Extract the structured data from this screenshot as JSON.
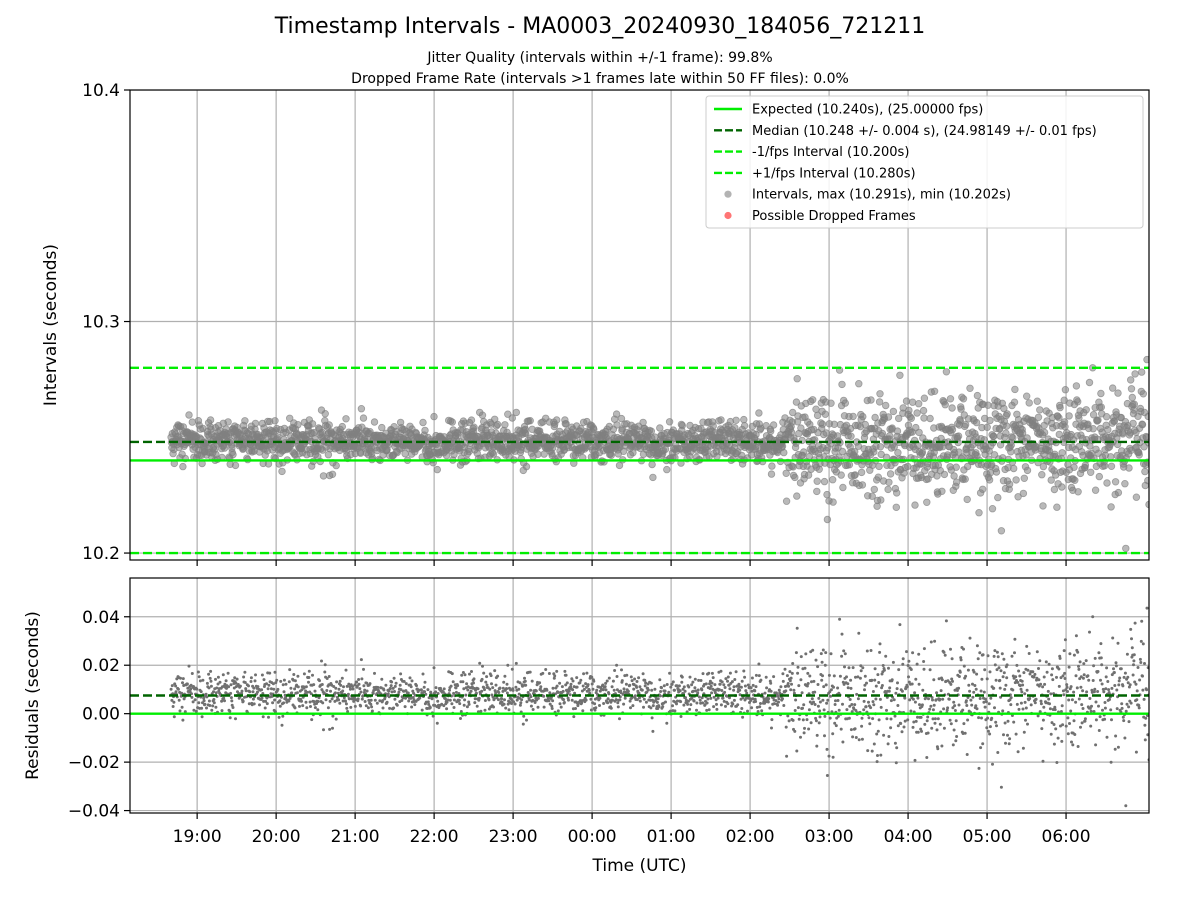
{
  "chart_data": [
    {
      "type": "scatter",
      "title": "Timestamp Intervals - MA0003_20240930_184056_721211",
      "subtitles": [
        "Jitter Quality (intervals within +/-1 frame): 99.8%",
        "Dropped Frame Rate (intervals >1 frames late within 50 FF files): 0.0%"
      ],
      "ylabel": "Intervals (seconds)",
      "xlabel": "",
      "ylim": [
        10.197,
        10.4
      ],
      "yticks": [
        10.2,
        10.3,
        10.4
      ],
      "ytick_labels": [
        "10.2",
        "10.3",
        "10.4"
      ],
      "xlim_hours": [
        -0.85,
        12.05
      ],
      "x_unit": "hours after 19:00 UTC",
      "xticks": [
        0,
        1,
        2,
        3,
        4,
        5,
        6,
        7,
        8,
        9,
        10,
        11
      ],
      "grid": true,
      "legend_position": "top-right",
      "lines": [
        {
          "name": "Expected (10.240s), (25.00000 fps)",
          "y": 10.24,
          "style": "solid",
          "color": "#00ee00"
        },
        {
          "name": "Median (10.248 +/- 0.004 s), (24.98149 +/- 0.01 fps)",
          "y": 10.248,
          "style": "dashed",
          "color": "#006400"
        },
        {
          "name": "-1/fps Interval (10.200s)",
          "y": 10.2,
          "style": "dashed",
          "color": "#00ee00"
        },
        {
          "name": "+1/fps Interval (10.280s)",
          "y": 10.28,
          "style": "dashed",
          "color": "#00ee00"
        }
      ],
      "legend": [
        {
          "label": "Expected (10.240s), (25.00000 fps)",
          "kind": "line",
          "style": "solid",
          "color": "#00ee00"
        },
        {
          "label": "Median (10.248 +/- 0.004 s), (24.98149 +/- 0.01 fps)",
          "kind": "line",
          "style": "dashed",
          "color": "#006400"
        },
        {
          "label": "-1/fps Interval (10.200s)",
          "kind": "line",
          "style": "dashed",
          "color": "#00ee00"
        },
        {
          "label": "+1/fps Interval (10.280s)",
          "kind": "line",
          "style": "dashed",
          "color": "#00ee00"
        },
        {
          "label": "Intervals, max (10.291s), min (10.202s)",
          "kind": "marker",
          "color": "#808080"
        },
        {
          "label": "Possible Dropped Frames",
          "kind": "marker",
          "color": "#ff6666"
        }
      ],
      "series": [
        {
          "name": "Intervals",
          "color": "#808080",
          "x_start_hours": -0.33,
          "x_end_hours": 12.05,
          "center": 10.248,
          "typical_spread_s_calm": 0.0042,
          "typical_spread_s_noisy": 0.011,
          "noisy_from_hours": 7.45,
          "max": 10.291,
          "min": 10.202
        },
        {
          "name": "Possible Dropped Frames",
          "color": "#ff6666",
          "count": 0
        }
      ]
    },
    {
      "type": "scatter",
      "ylabel": "Residuals (seconds)",
      "xlabel": "Time (UTC)",
      "ylim": [
        -0.041,
        0.056
      ],
      "yticks": [
        -0.04,
        -0.02,
        0.0,
        0.02,
        0.04
      ],
      "ytick_labels": [
        "−0.04",
        "−0.02",
        "0.00",
        "0.02",
        "0.04"
      ],
      "xlim_hours": [
        -0.85,
        12.05
      ],
      "x_unit": "hours after 19:00 UTC",
      "xticks": [
        0,
        1,
        2,
        3,
        4,
        5,
        6,
        7,
        8,
        9,
        10,
        11
      ],
      "xtick_labels": [
        "19:00",
        "20:00",
        "21:00",
        "22:00",
        "23:00",
        "00:00",
        "01:00",
        "02:00",
        "03:00",
        "04:00",
        "05:00",
        "06:00"
      ],
      "grid": true,
      "lines": [
        {
          "y": 0.0,
          "style": "solid",
          "color": "#00ee00"
        },
        {
          "y": 0.0075,
          "style": "dashed",
          "color": "#006400"
        }
      ],
      "series": [
        {
          "name": "Residuals",
          "color": "#707070",
          "x_start_hours": -0.33,
          "x_end_hours": 12.05,
          "center": 0.008,
          "typical_spread_s_calm": 0.0042,
          "typical_spread_s_noisy": 0.011,
          "noisy_from_hours": 7.45
        }
      ]
    }
  ]
}
